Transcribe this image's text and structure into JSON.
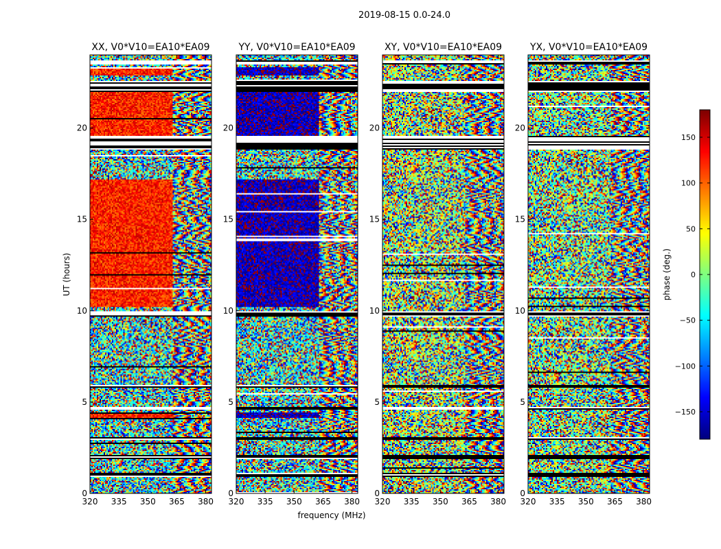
{
  "chart_data": {
    "type": "heatmap",
    "suptitle": "2019-08-15 0.0-24.0",
    "xlabel": "frequency (MHz)",
    "ylabel": "UT (hours)",
    "xlim": [
      320,
      383
    ],
    "ylim": [
      0,
      24
    ],
    "xticks": [
      320,
      335,
      350,
      365,
      380
    ],
    "yticks": [
      0,
      5,
      10,
      15,
      20
    ],
    "colorbar": {
      "label": "phase (deg.)",
      "range": [
        -180,
        180
      ],
      "ticks": [
        150,
        100,
        50,
        0,
        -50,
        -100,
        -150
      ],
      "tick_labels": [
        "150",
        "100",
        "50",
        "0",
        "−50",
        "−100",
        "−150"
      ],
      "colormap": "jet"
    },
    "panels": [
      {
        "title": "XX, V0*V10=EA10*EA09",
        "pol": "XX",
        "coherent_phase_deg": 125,
        "noise_phase_deg": -40
      },
      {
        "title": "YY, V0*V10=EA10*EA09",
        "pol": "YY",
        "coherent_phase_deg": -160,
        "noise_phase_deg": -40
      },
      {
        "title": "XY, V0*V10=EA10*EA09",
        "pol": "XY",
        "coherent_phase_deg": null,
        "noise_phase_deg": 20
      },
      {
        "title": "YX, V0*V10=EA10*EA09",
        "pol": "YX",
        "coherent_phase_deg": null,
        "noise_phase_deg": 0
      }
    ],
    "data_gaps_ut_hours": [
      [
        0.9,
        1.1
      ],
      [
        1.9,
        2.1
      ],
      [
        2.9,
        3.05
      ],
      [
        4.6,
        4.75
      ],
      [
        5.8,
        5.9
      ],
      [
        9.7,
        9.95
      ],
      [
        18.85,
        19.6
      ],
      [
        22.0,
        22.6
      ],
      [
        23.5,
        23.7
      ]
    ],
    "coherent_bands_ut_hours": [
      [
        4.1,
        4.4
      ],
      [
        10.2,
        17.2
      ],
      [
        19.6,
        22.0
      ],
      [
        22.9,
        23.3
      ]
    ],
    "structured_fringe_start_mhz": 363
  }
}
